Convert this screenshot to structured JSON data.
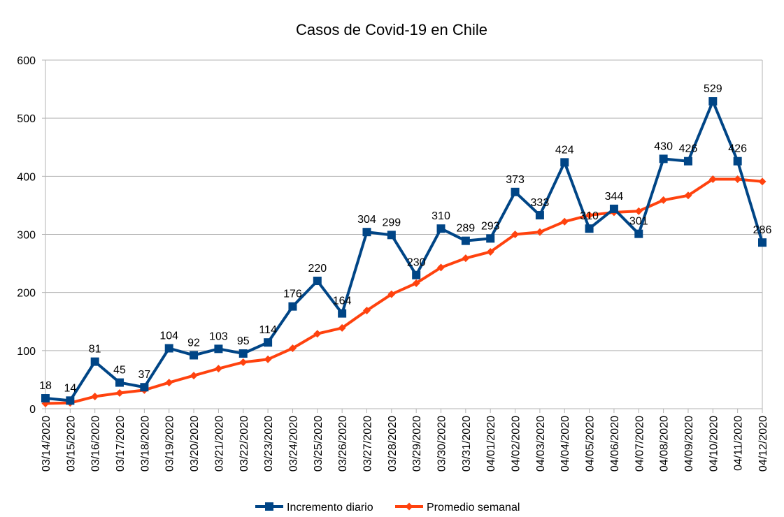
{
  "chart_data": {
    "type": "line",
    "title": "Casos de Covid-19 en Chile",
    "xlabel": "",
    "ylabel": "",
    "ylim": [
      0,
      600
    ],
    "yticks": [
      0,
      100,
      200,
      300,
      400,
      500,
      600
    ],
    "grid": true,
    "legend_position": "bottom",
    "categories": [
      "03/14/2020",
      "03/15/2020",
      "03/16/2020",
      "03/17/2020",
      "03/18/2020",
      "03/19/2020",
      "03/20/2020",
      "03/21/2020",
      "03/22/2020",
      "03/23/2020",
      "03/24/2020",
      "03/25/2020",
      "03/26/2020",
      "03/27/2020",
      "03/28/2020",
      "03/29/2020",
      "03/30/2020",
      "03/31/2020",
      "04/01/2020",
      "04/02/2020",
      "04/03/2020",
      "04/04/2020",
      "04/05/2020",
      "04/06/2020",
      "04/07/2020",
      "04/08/2020",
      "04/09/2020",
      "04/10/2020",
      "04/11/2020",
      "04/12/2020"
    ],
    "series": [
      {
        "name": "Incremento diario",
        "color": "#004586",
        "marker": "square",
        "show_labels": true,
        "values": [
          18,
          14,
          81,
          45,
          37,
          104,
          92,
          103,
          95,
          114,
          176,
          220,
          164,
          304,
          299,
          230,
          310,
          289,
          293,
          373,
          333,
          424,
          310,
          344,
          301,
          430,
          426,
          529,
          426,
          286
        ]
      },
      {
        "name": "Promedio semanal",
        "color": "#ff420e",
        "marker": "diamond",
        "show_labels": false,
        "values": [
          9,
          10,
          21,
          27,
          32,
          45,
          57,
          69,
          80,
          85,
          104,
          129,
          139,
          169,
          197,
          216,
          243,
          259,
          270,
          300,
          304,
          322,
          333,
          338,
          340,
          359,
          367,
          395,
          395,
          391
        ]
      }
    ]
  }
}
